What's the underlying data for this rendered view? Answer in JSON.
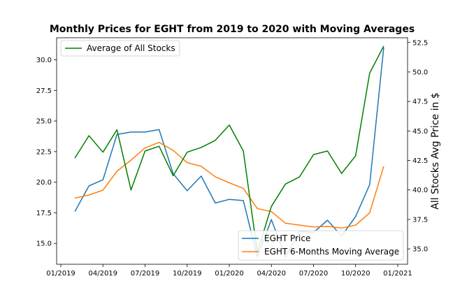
{
  "chart_data": {
    "type": "line",
    "title": "Monthly Prices for EGHT from 2019 to 2020 with Moving Averages",
    "xlabel": "",
    "ylabel": "",
    "y2label": "All Stocks Avg Price in $",
    "x_ticks": [
      "01/2019",
      "04/2019",
      "07/2019",
      "10/2019",
      "01/2020",
      "04/2020",
      "07/2020",
      "10/2020",
      "01/2021"
    ],
    "dates": [
      "2019-02",
      "2019-03",
      "2019-04",
      "2019-05",
      "2019-06",
      "2019-07",
      "2019-08",
      "2019-09",
      "2019-10",
      "2019-11",
      "2019-12",
      "2020-01",
      "2020-02",
      "2020-03",
      "2020-04",
      "2020-05",
      "2020-06",
      "2020-07",
      "2020-08",
      "2020-09",
      "2020-10",
      "2020-11",
      "2020-12"
    ],
    "ylim": [
      13.3,
      31.8
    ],
    "y_ticks": [
      15.0,
      17.5,
      20.0,
      22.5,
      25.0,
      27.5,
      30.0
    ],
    "y2lim": [
      33.7,
      52.9
    ],
    "y2_ticks": [
      35.0,
      37.5,
      40.0,
      42.5,
      45.0,
      47.5,
      50.0,
      52.5
    ],
    "series": [
      {
        "name": "EGHT Price",
        "axis": "left",
        "color": "#1f77b4",
        "values": [
          17.6,
          19.7,
          20.2,
          23.9,
          24.1,
          24.1,
          24.3,
          20.7,
          19.3,
          20.5,
          18.3,
          18.6,
          18.5,
          13.9,
          16.95,
          13.9,
          16.0,
          15.9,
          16.9,
          15.6,
          17.2,
          19.8,
          31.0
        ]
      },
      {
        "name": "EGHT 6-Months Moving Average",
        "axis": "left",
        "color": "#ff7f0e",
        "values": [
          18.7,
          18.95,
          19.35,
          20.9,
          21.8,
          22.8,
          23.25,
          22.6,
          21.6,
          21.3,
          20.45,
          19.95,
          19.5,
          17.85,
          17.6,
          16.65,
          16.5,
          16.35,
          16.4,
          16.25,
          16.5,
          17.5,
          21.3
        ]
      },
      {
        "name": "Average of All Stocks",
        "axis": "right",
        "color": "#008000",
        "values": [
          42.7,
          44.6,
          43.2,
          45.1,
          40.0,
          43.3,
          43.7,
          41.2,
          43.2,
          43.6,
          44.2,
          45.5,
          43.3,
          34.7,
          38.6,
          40.5,
          41.1,
          43.0,
          43.3,
          41.4,
          42.9,
          49.9,
          52.2
        ]
      }
    ],
    "legend_left_position": "upper-right",
    "legend_right_position": "upper-left",
    "grid": false
  }
}
